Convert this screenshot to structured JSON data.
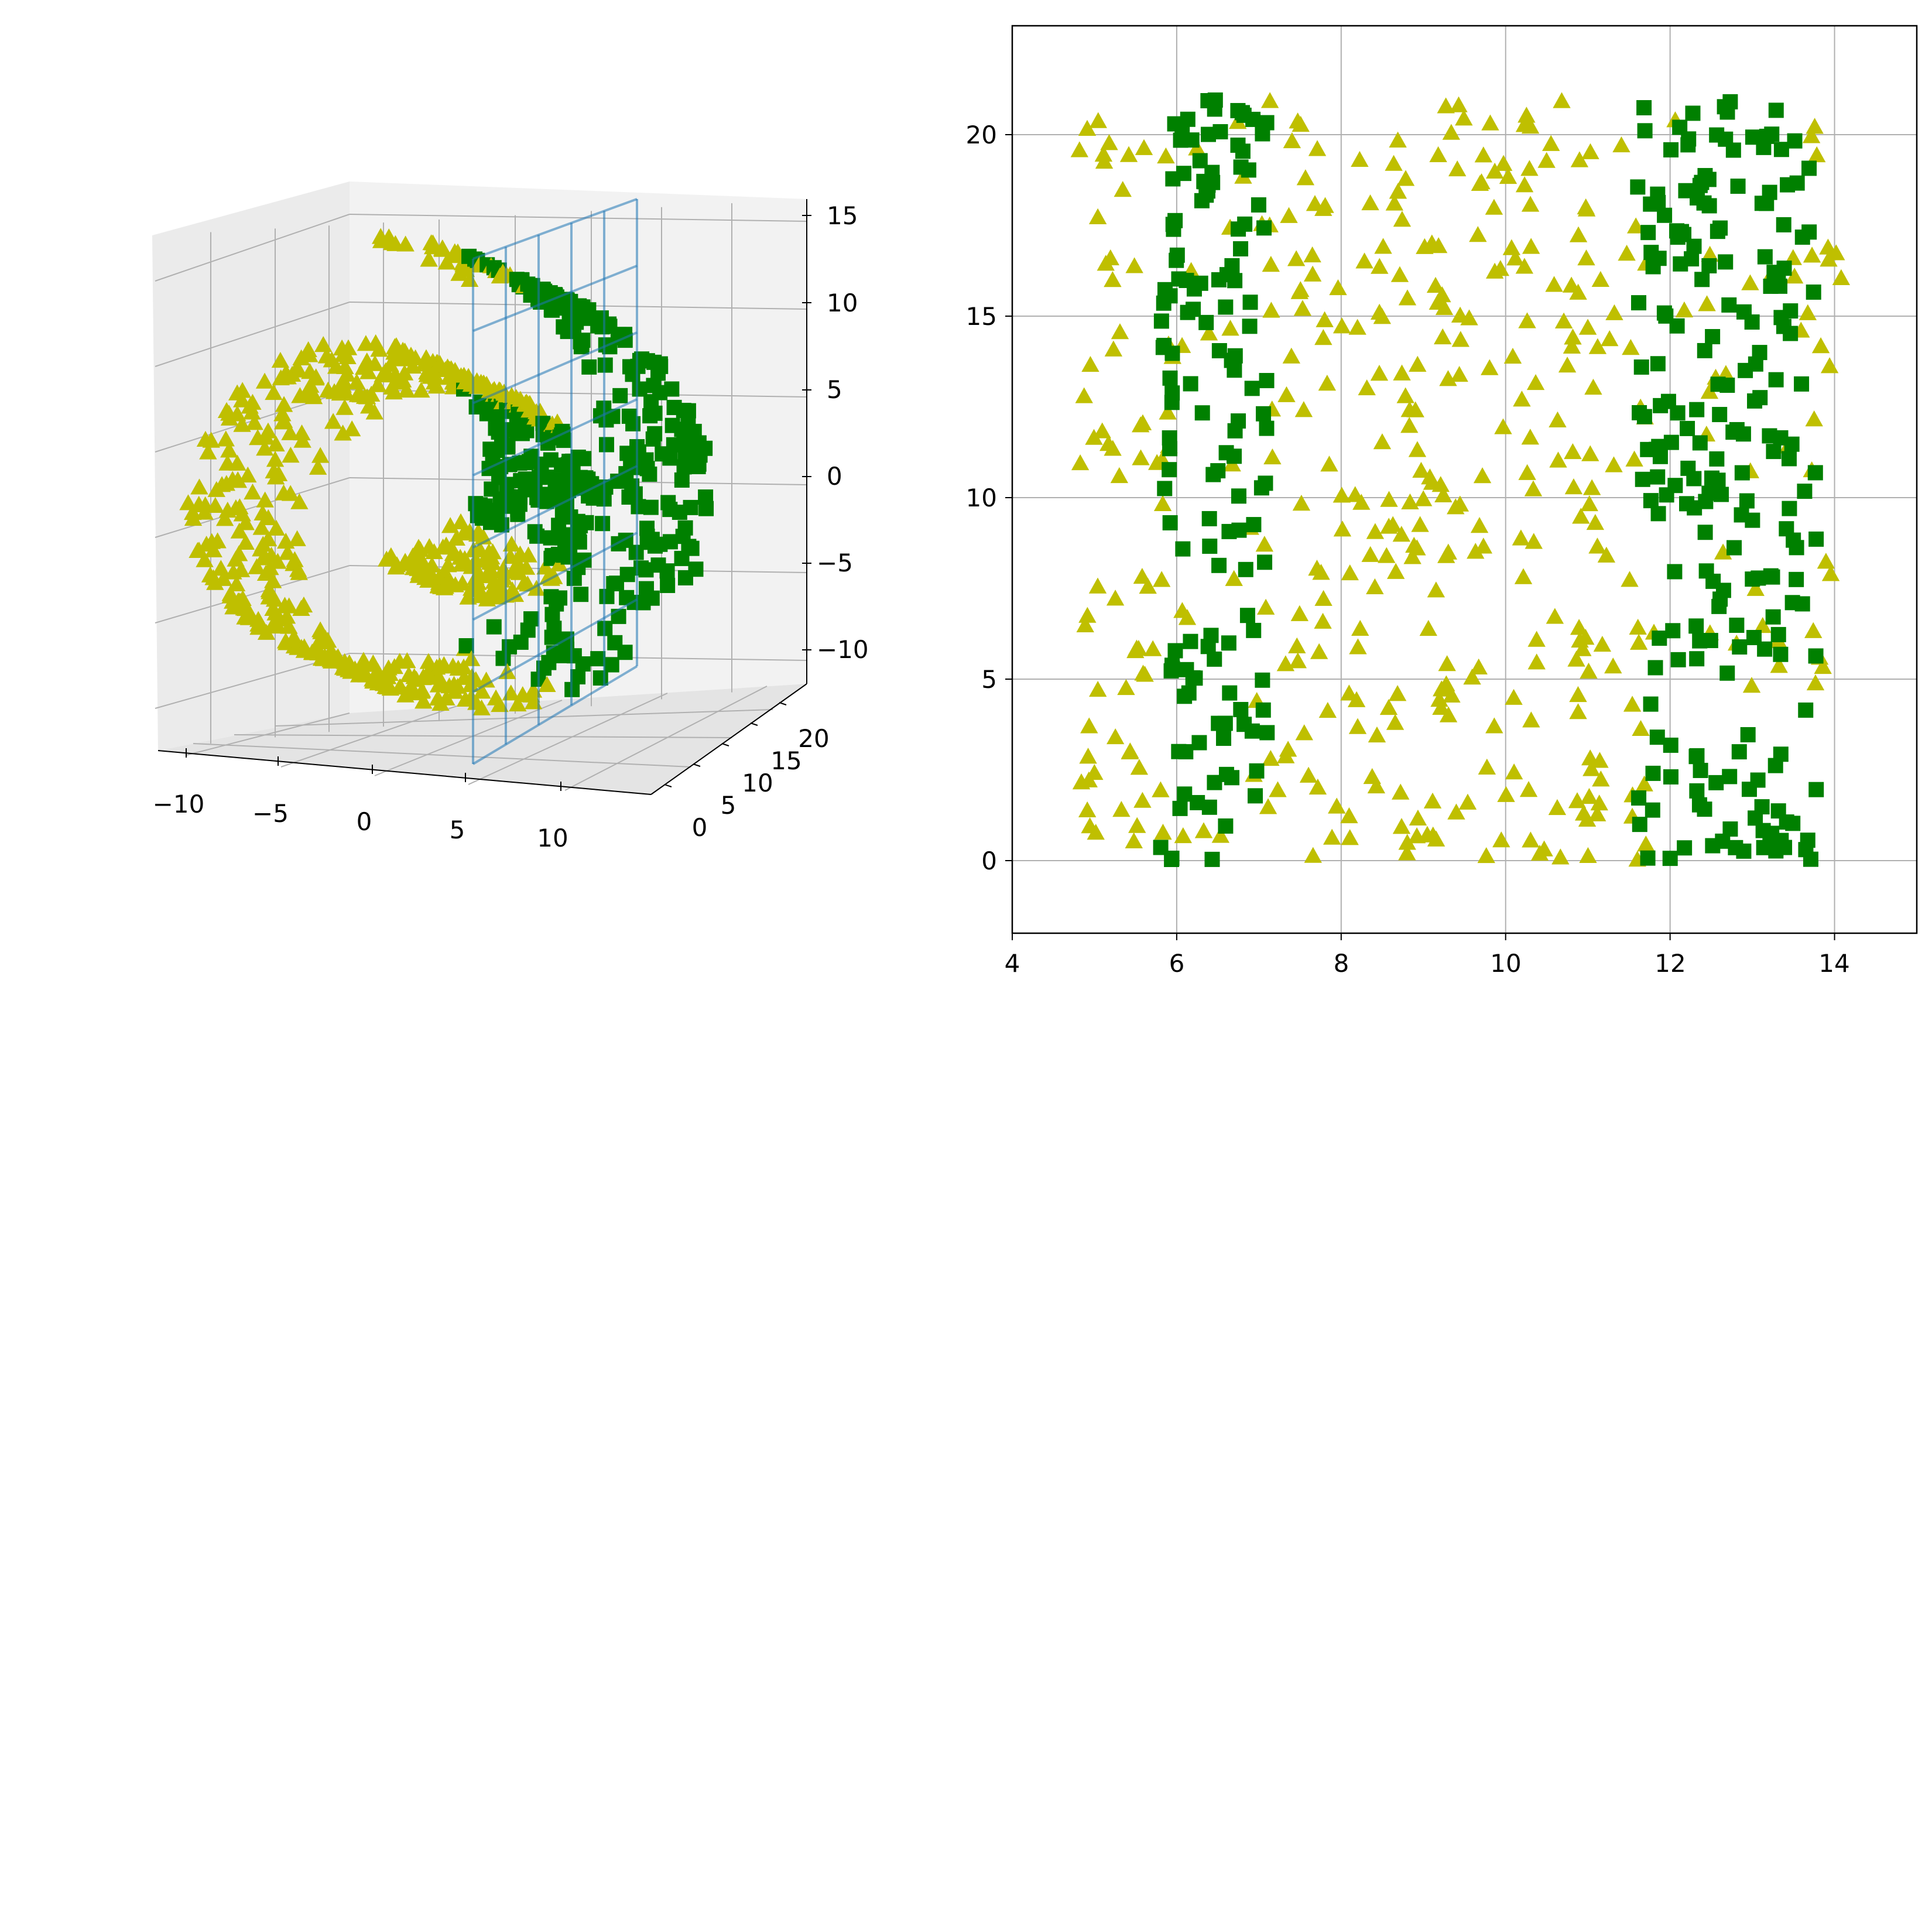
{
  "colors": {
    "triangle_series": "#bfbf00",
    "square_series": "#008000",
    "plane": "#1f77b4",
    "grid": "#b0b0b0",
    "pane_back": "#f2f2f2",
    "pane_side": "#ebebeb",
    "pane_floor": "#e4e4e4"
  },
  "chart_data": [
    {
      "type": "scatter",
      "projection": "3d",
      "description_note": "Swiss roll point cloud with a vertical cutting plane at x = 5",
      "x_ticks": [
        "−10",
        "−5",
        "0",
        "5",
        "10"
      ],
      "y_ticks": [
        "0",
        "5",
        "10",
        "15",
        "20"
      ],
      "z_ticks": [
        "15",
        "10",
        "5",
        "0",
        "−5",
        "−10"
      ],
      "xlim": [
        -11,
        14
      ],
      "ylim": [
        0,
        21
      ],
      "zlim": [
        -12,
        15
      ],
      "plane": {
        "x": 5,
        "y_range": [
          0,
          21
        ],
        "z_range": [
          -12,
          15
        ]
      },
      "grid": true,
      "series": [
        {
          "marker": "triangle",
          "color": "#bfbf00",
          "region": "x < 5 and inner roll"
        },
        {
          "marker": "square",
          "color": "#008000",
          "region": "x > 5 outer roll"
        }
      ]
    },
    {
      "type": "scatter",
      "x_ticks": [
        "4",
        "6",
        "8",
        "10",
        "12",
        "14"
      ],
      "y_ticks": [
        "0",
        "5",
        "10",
        "15",
        "20"
      ],
      "xlim": [
        4,
        15
      ],
      "ylim": [
        -2,
        23
      ],
      "grid": true,
      "series": [
        {
          "marker": "triangle",
          "color": "#bfbf00",
          "x_range": [
            4.8,
            14.1
          ],
          "y_range": [
            0,
            21
          ]
        },
        {
          "marker": "square",
          "color": "#008000",
          "x_bands": [
            [
              5.8,
              7.1
            ],
            [
              11.6,
              13.8
            ]
          ],
          "y_range": [
            0,
            21
          ]
        }
      ]
    }
  ]
}
